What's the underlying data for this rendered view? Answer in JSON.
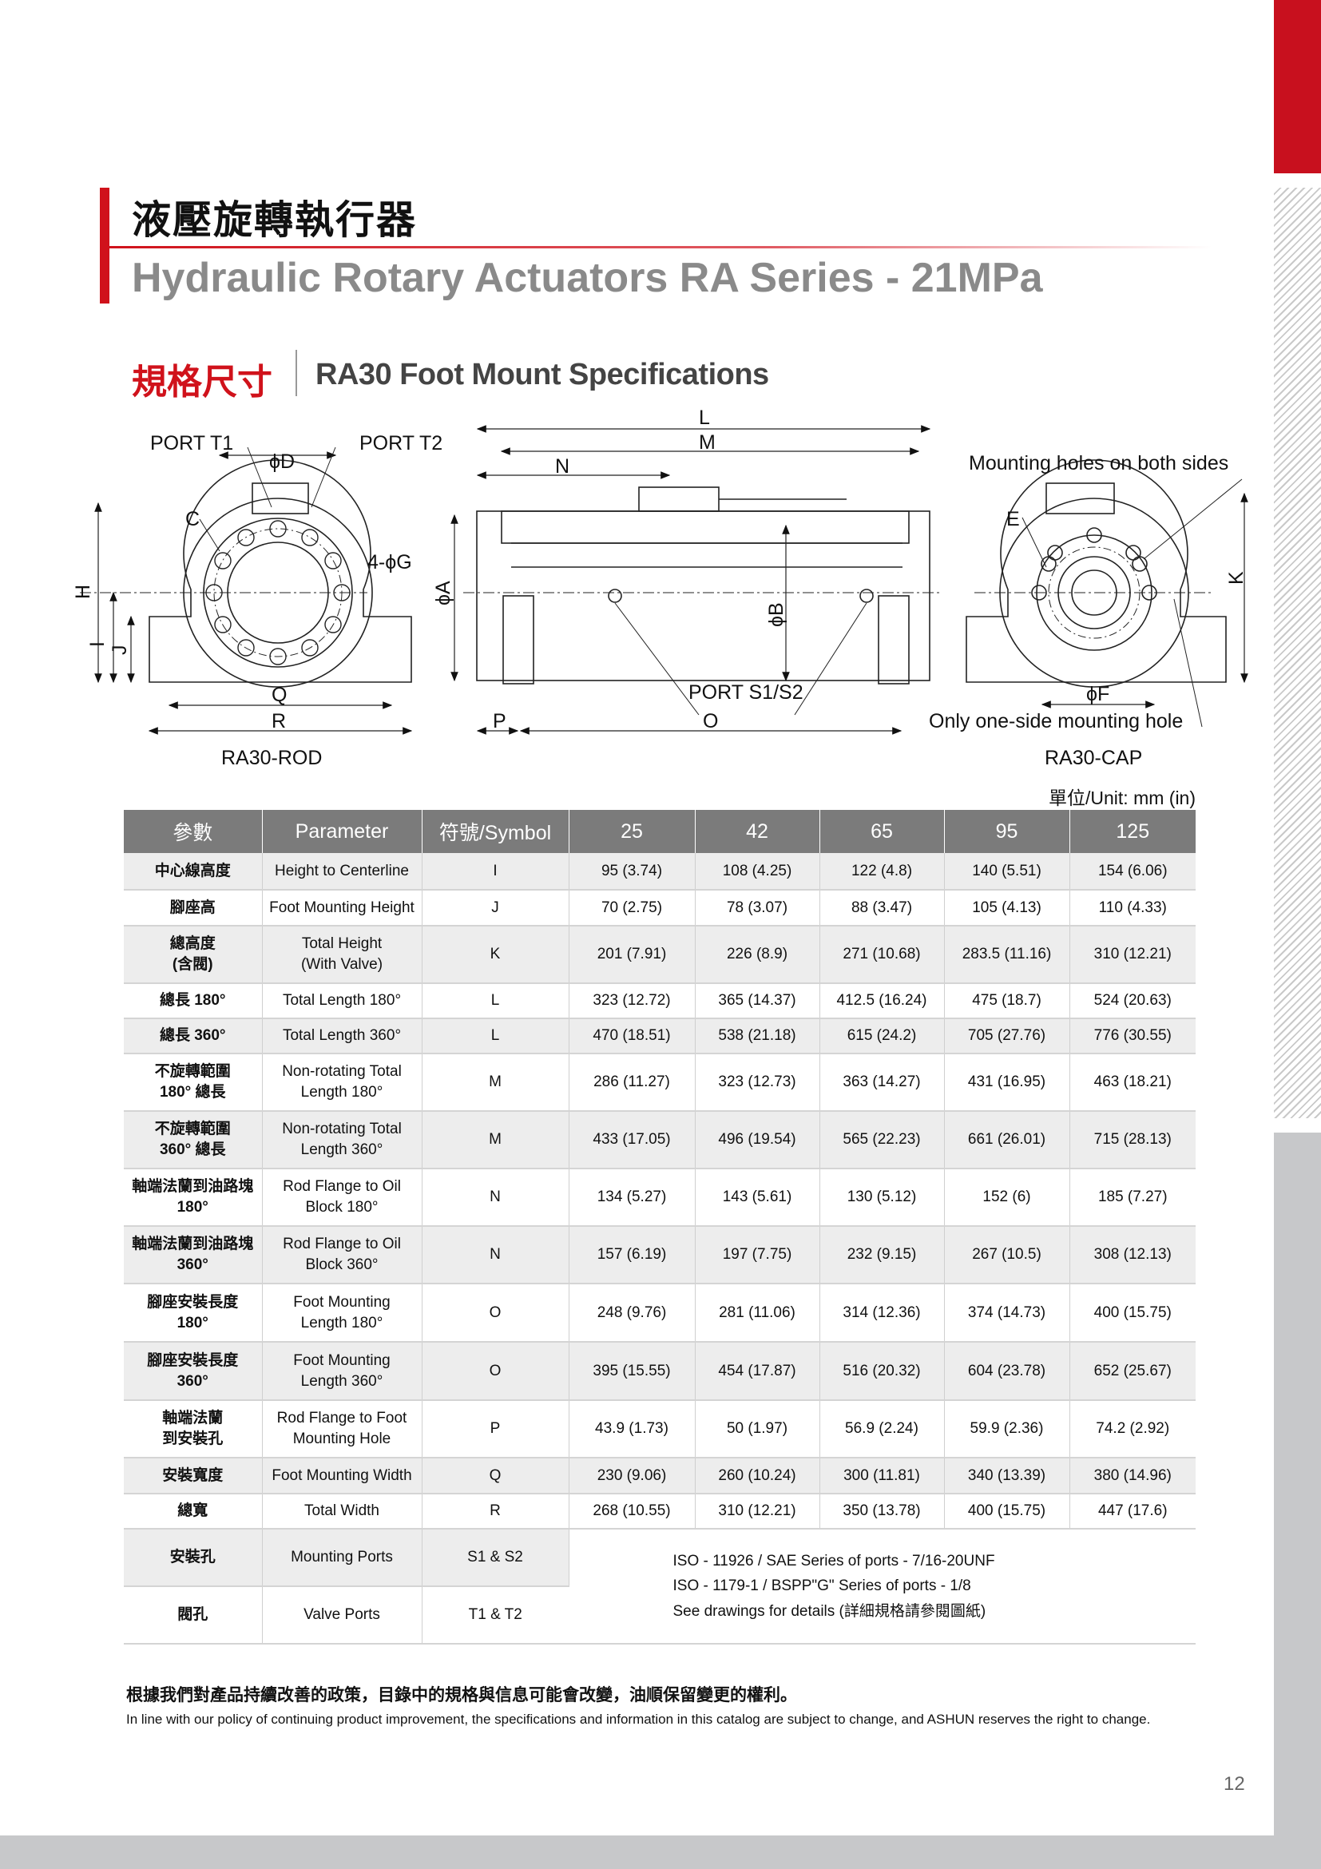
{
  "header": {
    "title_zh": "液壓旋轉執行器",
    "title_en": "Hydraulic Rotary Actuators RA Series - 21MPa",
    "section_zh": "規格尺寸",
    "section_en": "RA30 Foot Mount Specifications",
    "accent_color": "#d0121b"
  },
  "drawing": {
    "port_t1": "PORT T1",
    "port_t2": "PORT T2",
    "d": "ϕD",
    "c": "C",
    "g": "4-ϕG",
    "h": "H",
    "i": "I",
    "j": "J",
    "q": "Q",
    "r": "R",
    "rod_caption": "RA30-ROD",
    "l": "L",
    "m": "M",
    "n": "N",
    "a": "ϕA",
    "b": "ϕB",
    "port_s": "PORT S1/S2",
    "p": "P",
    "o": "O",
    "mount_both": "Mounting holes on both sides",
    "e": "E",
    "k": "K",
    "f": "ϕF",
    "one_side": "Only one-side mounting hole",
    "cap_caption": "RA30-CAP"
  },
  "unit": "單位/Unit: mm (in)",
  "table": {
    "headers": [
      "參數",
      "Parameter",
      "符號/Symbol",
      "25",
      "42",
      "65",
      "95",
      "125"
    ],
    "rows": [
      {
        "zh": "中心線高度",
        "en": "Height to Centerline",
        "sym": "I",
        "v": [
          "95 (3.74)",
          "108 (4.25)",
          "122 (4.8)",
          "140 (5.51)",
          "154 (6.06)"
        ]
      },
      {
        "zh": "腳座高",
        "en": "Foot Mounting Height",
        "sym": "J",
        "v": [
          "70 (2.75)",
          "78 (3.07)",
          "88 (3.47)",
          "105 (4.13)",
          "110 (4.33)"
        ]
      },
      {
        "zh": "總高度\n(含閥)",
        "en": "Total Height\n(With Valve)",
        "sym": "K",
        "v": [
          "201 (7.91)",
          "226 (8.9)",
          "271 (10.68)",
          "283.5 (11.16)",
          "310 (12.21)"
        ]
      },
      {
        "zh": "總長 180°",
        "en": "Total Length 180°",
        "sym": "L",
        "v": [
          "323 (12.72)",
          "365 (14.37)",
          "412.5 (16.24)",
          "475 (18.7)",
          "524 (20.63)"
        ]
      },
      {
        "zh": "總長 360°",
        "en": "Total Length 360°",
        "sym": "L",
        "v": [
          "470 (18.51)",
          "538 (21.18)",
          "615 (24.2)",
          "705 (27.76)",
          "776 (30.55)"
        ]
      },
      {
        "zh": "不旋轉範圍\n180° 總長",
        "en": "Non-rotating Total\nLength 180°",
        "sym": "M",
        "v": [
          "286 (11.27)",
          "323 (12.73)",
          "363 (14.27)",
          "431 (16.95)",
          "463 (18.21)"
        ]
      },
      {
        "zh": "不旋轉範圍\n360° 總長",
        "en": "Non-rotating Total\nLength 360°",
        "sym": "M",
        "v": [
          "433 (17.05)",
          "496 (19.54)",
          "565 (22.23)",
          "661 (26.01)",
          "715 (28.13)"
        ]
      },
      {
        "zh": "軸端法蘭到油路塊\n180°",
        "en": "Rod Flange to Oil\nBlock 180°",
        "sym": "N",
        "v": [
          "134 (5.27)",
          "143 (5.61)",
          "130 (5.12)",
          "152 (6)",
          "185 (7.27)"
        ]
      },
      {
        "zh": "軸端法蘭到油路塊\n360°",
        "en": "Rod Flange to Oil\nBlock 360°",
        "sym": "N",
        "v": [
          "157 (6.19)",
          "197 (7.75)",
          "232 (9.15)",
          "267 (10.5)",
          "308 (12.13)"
        ]
      },
      {
        "zh": "腳座安裝長度\n180°",
        "en": "Foot Mounting\nLength 180°",
        "sym": "O",
        "v": [
          "248 (9.76)",
          "281 (11.06)",
          "314 (12.36)",
          "374 (14.73)",
          "400 (15.75)"
        ]
      },
      {
        "zh": "腳座安裝長度\n360°",
        "en": "Foot Mounting\nLength 360°",
        "sym": "O",
        "v": [
          "395 (15.55)",
          "454 (17.87)",
          "516 (20.32)",
          "604 (23.78)",
          "652 (25.67)"
        ]
      },
      {
        "zh": "軸端法蘭\n到安裝孔",
        "en": "Rod Flange to Foot\nMounting Hole",
        "sym": "P",
        "v": [
          "43.9 (1.73)",
          "50 (1.97)",
          "56.9 (2.24)",
          "59.9 (2.36)",
          "74.2 (2.92)"
        ]
      },
      {
        "zh": "安裝寬度",
        "en": "Foot Mounting Width",
        "sym": "Q",
        "v": [
          "230 (9.06)",
          "260 (10.24)",
          "300 (11.81)",
          "340 (13.39)",
          "380 (14.96)"
        ]
      },
      {
        "zh": "總寬",
        "en": "Total Width",
        "sym": "R",
        "v": [
          "268 (10.55)",
          "310 (12.21)",
          "350 (13.78)",
          "400 (15.75)",
          "447 (17.6)"
        ]
      }
    ],
    "port_rows": [
      {
        "zh": "安裝孔",
        "en": "Mounting Ports",
        "sym": "S1 & S2"
      },
      {
        "zh": "閥孔",
        "en": "Valve Ports",
        "sym": "T1 & T2"
      }
    ],
    "port_notes": [
      "ISO - 11926 / SAE Series of ports - 7/16-20UNF",
      "ISO - 1179-1 / BSPP\"G\" Series of ports - 1/8",
      "See drawings for details (詳細規格請參閱圖紙)"
    ]
  },
  "footer": {
    "note_zh": "根據我們對產品持續改善的政策，目錄中的規格與信息可能會改變，油順保留變更的權利。",
    "note_en": "In line with our policy of continuing product improvement, the specifications and information in this catalog are subject to change, and ASHUN reserves the right to change.",
    "page_number": "12"
  }
}
